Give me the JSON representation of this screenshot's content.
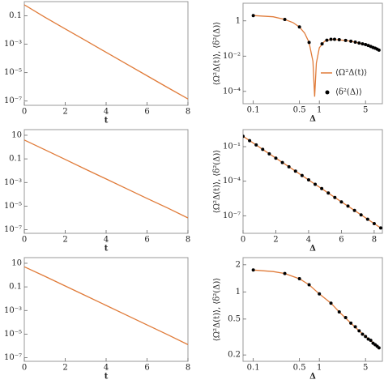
{
  "chart_data": [
    {
      "type": "line",
      "x_label": "t",
      "xlim": [
        0,
        8
      ],
      "ylim": [
        5e-08,
        1
      ],
      "ylog": true,
      "xticks": [
        0,
        2,
        4,
        6,
        8
      ],
      "yticks": [
        0.1,
        {
          "value": 0.001,
          "label": "10⁻³"
        },
        {
          "value": 1e-05,
          "label": "10⁻⁵"
        },
        {
          "value": 1e-07,
          "label": "10⁻⁷"
        }
      ],
      "series": [
        {
          "color": "#e07b39",
          "style": "line",
          "x": [
            0,
            1,
            2,
            3,
            4,
            5,
            6,
            7,
            8
          ],
          "values": [
            0.6,
            0.08,
            0.012,
            0.0018,
            0.00027,
            4e-05,
            6e-06,
            9e-07,
            1.4e-07
          ]
        }
      ]
    },
    {
      "type": "line",
      "x_label": "Δ",
      "y_label": "⟨Ω²Δ(t)⟩, ⟨δ²(Δ)⟩",
      "xlim": [
        0.07,
        9
      ],
      "ylim": [
        2e-05,
        10
      ],
      "xlog": true,
      "ylog": true,
      "xticks": [
        0.1,
        0.5,
        1,
        5
      ],
      "yticks": [
        1,
        {
          "value": 0.01,
          "label": "10⁻²"
        },
        {
          "value": 0.0001,
          "label": "10⁻⁴"
        }
      ],
      "legend": "lower right",
      "series": [
        {
          "name": "⟨Ω²Δ(t)⟩",
          "color": "#e07b39",
          "style": "line",
          "x": [
            0.1,
            0.2,
            0.3,
            0.4,
            0.5,
            0.6,
            0.7,
            0.8,
            0.85,
            0.9,
            1,
            1.2,
            1.5,
            2,
            3,
            4,
            5,
            6,
            7,
            8
          ],
          "values": [
            2,
            1.7,
            1.2,
            0.8,
            0.45,
            0.2,
            0.06,
            0.005,
            5e-05,
            0.004,
            0.03,
            0.07,
            0.09,
            0.085,
            0.07,
            0.055,
            0.045,
            0.035,
            0.028,
            0.022
          ]
        },
        {
          "name": "⟨δ²(Δ)⟩",
          "color": "#000000",
          "style": "dots",
          "x": [
            0.1,
            0.3,
            0.5,
            0.7,
            1.1,
            1.3,
            1.5,
            1.7,
            2,
            2.5,
            3,
            3.5,
            4,
            4.5,
            5,
            5.5,
            6,
            6.5,
            7,
            7.5,
            8
          ],
          "values": [
            2,
            1.2,
            0.45,
            0.06,
            0.05,
            0.08,
            0.09,
            0.09,
            0.085,
            0.078,
            0.07,
            0.062,
            0.055,
            0.05,
            0.045,
            0.04,
            0.035,
            0.031,
            0.028,
            0.025,
            0.022
          ]
        }
      ]
    },
    {
      "type": "line",
      "x_label": "t",
      "xlim": [
        0,
        8
      ],
      "ylim": [
        5e-08,
        30
      ],
      "ylog": true,
      "xticks": [
        0,
        2,
        4,
        6,
        8
      ],
      "yticks": [
        10,
        0.1,
        {
          "value": 0.001,
          "label": "10⁻³"
        },
        {
          "value": 1e-05,
          "label": "10⁻⁵"
        },
        {
          "value": 1e-07,
          "label": "10⁻⁷"
        }
      ],
      "series": [
        {
          "color": "#e07b39",
          "style": "line",
          "x": [
            0,
            1,
            2,
            3,
            4,
            5,
            6,
            7,
            8
          ],
          "values": [
            4,
            0.6,
            0.09,
            0.013,
            0.002,
            0.0003,
            4.5e-05,
            7e-06,
            1e-06
          ]
        }
      ]
    },
    {
      "type": "line",
      "x_label": "Δ",
      "y_label": "⟨Ω²Δ(t)⟩, ⟨δ²(Δ)⟩",
      "xlim": [
        0,
        8.5
      ],
      "ylim": [
        3e-09,
        3
      ],
      "ylog": true,
      "xticks": [
        0,
        2,
        4,
        6,
        8
      ],
      "yticks": [
        {
          "value": 0.1,
          "label": "10⁻¹"
        },
        {
          "value": 0.0001,
          "label": "10⁻⁴"
        },
        {
          "value": 1e-07,
          "label": "10⁻⁷"
        }
      ],
      "series": [
        {
          "color": "#e07b39",
          "style": "line",
          "x": [
            0,
            0.4,
            0.8,
            1.2,
            1.6,
            2,
            2.4,
            2.8,
            3.2,
            3.6,
            4,
            4.4,
            4.8,
            5.2,
            5.6,
            6,
            6.4,
            6.8,
            7.2,
            7.6,
            8,
            8.4
          ],
          "values": [
            0.79,
            0.33,
            0.14,
            0.058,
            0.024,
            0.01,
            0.0042,
            0.0018,
            0.00074,
            0.00031,
            0.00013,
            5.4e-05,
            2.3e-05,
            9.4e-06,
            3.9e-06,
            1.6e-06,
            6.9e-07,
            2.9e-07,
            1.2e-07,
            5e-08,
            2.1e-08,
            8.7e-09
          ]
        },
        {
          "color": "#000000",
          "style": "dots",
          "x": [
            0,
            0.4,
            0.8,
            1.2,
            1.6,
            2,
            2.4,
            2.8,
            3.2,
            3.6,
            4,
            4.4,
            4.8,
            5.2,
            5.6,
            6,
            6.4,
            6.8,
            7.2,
            7.6,
            8,
            8.4
          ],
          "values": [
            0.79,
            0.33,
            0.14,
            0.058,
            0.024,
            0.01,
            0.0042,
            0.0018,
            0.00074,
            0.00031,
            0.00013,
            5.4e-05,
            2.3e-05,
            9.4e-06,
            3.9e-06,
            1.6e-06,
            6.9e-07,
            2.9e-07,
            1.2e-07,
            5e-08,
            2.1e-08,
            8.7e-09
          ]
        }
      ]
    },
    {
      "type": "line",
      "x_label": "t",
      "xlim": [
        0,
        8
      ],
      "ylim": [
        5e-08,
        30
      ],
      "ylog": true,
      "xticks": [
        0,
        2,
        4,
        6,
        8
      ],
      "yticks": [
        10,
        0.1,
        {
          "value": 0.001,
          "label": "10⁻³"
        },
        {
          "value": 1e-05,
          "label": "10⁻⁵"
        },
        {
          "value": 1e-07,
          "label": "10⁻⁷"
        }
      ],
      "series": [
        {
          "color": "#e07b39",
          "style": "line",
          "x": [
            0,
            1,
            2,
            3,
            4,
            5,
            6,
            7,
            8
          ],
          "values": [
            5,
            0.8,
            0.12,
            0.018,
            0.0027,
            0.0004,
            6e-05,
            9e-06,
            1.3e-06
          ]
        }
      ]
    },
    {
      "type": "line",
      "x_label": "Δ",
      "y_label": "⟨Ω²Δ(t)⟩, ⟨δ²(Δ)⟩",
      "xlim": [
        0.07,
        9
      ],
      "ylim": [
        0.17,
        2.4
      ],
      "xlog": true,
      "ylog": true,
      "xticks": [
        0.1,
        0.5,
        1,
        5
      ],
      "yticks": [
        2,
        1,
        0.5,
        0.2
      ],
      "series": [
        {
          "color": "#e07b39",
          "style": "line",
          "x": [
            0.1,
            0.2,
            0.3,
            0.5,
            0.7,
            1,
            1.5,
            2,
            3,
            4,
            5,
            6,
            7,
            8
          ],
          "values": [
            1.75,
            1.68,
            1.6,
            1.4,
            1.2,
            0.95,
            0.75,
            0.6,
            0.45,
            0.37,
            0.32,
            0.29,
            0.26,
            0.24
          ]
        },
        {
          "color": "#000000",
          "style": "dots",
          "x": [
            0.1,
            0.3,
            0.5,
            0.7,
            1,
            1.5,
            2,
            2.5,
            3,
            3.5,
            4,
            4.5,
            5,
            5.5,
            6,
            6.5,
            7,
            7.5,
            8
          ],
          "values": [
            1.75,
            1.6,
            1.4,
            1.2,
            0.95,
            0.75,
            0.6,
            0.52,
            0.45,
            0.41,
            0.37,
            0.34,
            0.32,
            0.3,
            0.29,
            0.27,
            0.26,
            0.25,
            0.24
          ]
        }
      ]
    }
  ]
}
